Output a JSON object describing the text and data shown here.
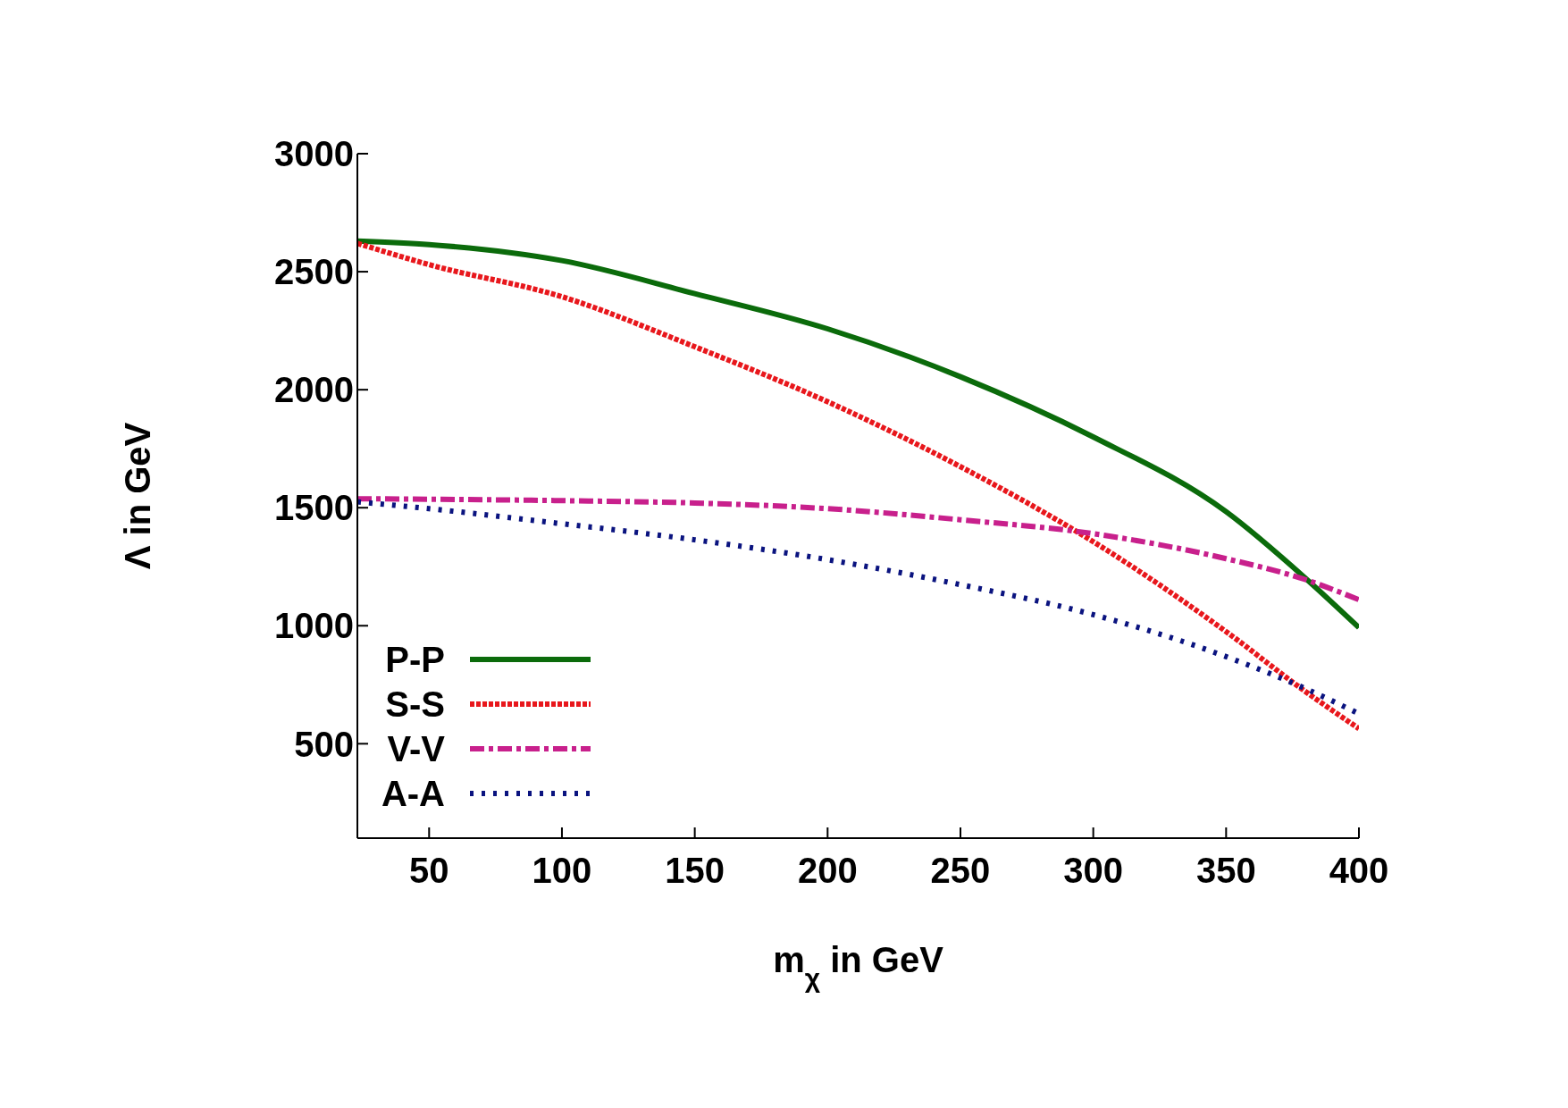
{
  "chart_data": {
    "type": "line",
    "xlabel": "m$_{χ}$ in GeV",
    "ylabel": "Λ in GeV",
    "x": [
      23,
      50,
      100,
      150,
      200,
      250,
      300,
      350,
      380,
      400
    ],
    "xlim": [
      23,
      400
    ],
    "xticks": [
      50,
      100,
      150,
      200,
      250,
      300,
      350,
      400
    ],
    "ylim": [
      100,
      3000
    ],
    "yticks": [
      500,
      1000,
      1500,
      2000,
      2500,
      3000
    ],
    "legend": "bottom left",
    "grid": false,
    "marker": "none",
    "series": [
      {
        "name": "P-P",
        "color": "#0b6b0b",
        "line_style": "solid",
        "values": [
          2630,
          2615,
          2547,
          2407,
          2258,
          2055,
          1800,
          1483,
          1200,
          992
        ]
      },
      {
        "name": "S-S",
        "color": "#e8171c",
        "line_style": "dashed",
        "values": [
          2620,
          2530,
          2394,
          2182,
          1949,
          1674,
          1356,
          975,
          720,
          564
        ]
      },
      {
        "name": "V-V",
        "color": "#c8208c",
        "line_style": "dashdot",
        "values": [
          1538,
          1536,
          1530,
          1520,
          1496,
          1449,
          1390,
          1284,
          1195,
          1110
        ]
      },
      {
        "name": "A-A",
        "color": "#0a137f",
        "line_style": "dotted",
        "values": [
          1525,
          1496,
          1432,
          1364,
          1280,
          1174,
          1047,
          869,
          733,
          627
        ]
      }
    ]
  }
}
